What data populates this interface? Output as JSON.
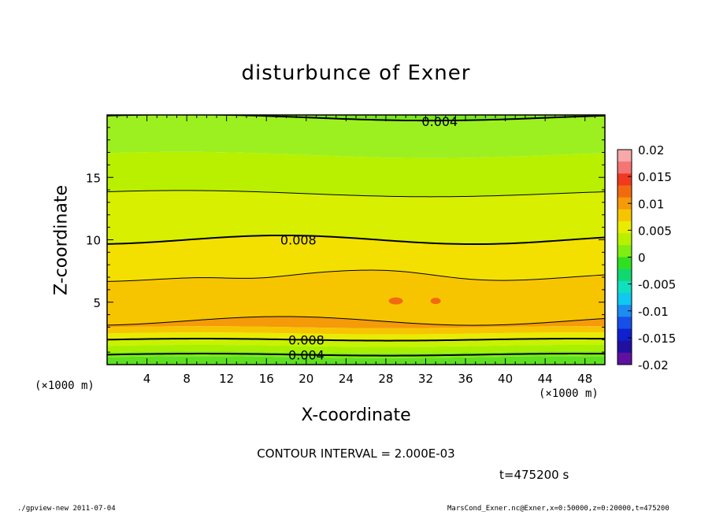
{
  "title": "disturbunce of Exner",
  "xlabel": "X-coordinate",
  "ylabel": "Z-coordinate",
  "x_unit_left": "(×1000 m)",
  "x_unit_right": "(×1000 m)",
  "contour_interval": "CONTOUR INTERVAL = 2.000E-03",
  "time": "t=475200 s",
  "footer_left": "./gpview-new   2011-07-04",
  "footer_right": "MarsCond_Exner.nc@Exner,x=0:50000,z=0:20000,t=475200",
  "chart_data": {
    "type": "heatmap",
    "title": "disturbunce of Exner",
    "xlabel": "X-coordinate",
    "ylabel": "Z-coordinate",
    "xlim": [
      0,
      50
    ],
    "ylim": [
      0,
      20
    ],
    "x_ticks": [
      4,
      8,
      12,
      16,
      20,
      24,
      28,
      32,
      36,
      40,
      44,
      48
    ],
    "y_ticks": [
      5,
      10,
      15
    ],
    "colorbar": {
      "ticks": [
        "0.02",
        "0.015",
        "0.01",
        "0.005",
        "0",
        "-0.005",
        "-0.01",
        "-0.015",
        "-0.02"
      ],
      "range": [
        -0.02,
        0.02
      ],
      "colors": [
        "#f7a8a8",
        "#f57575",
        "#f03a20",
        "#f26a10",
        "#f59a08",
        "#f7c500",
        "#e8ec00",
        "#b8f000",
        "#80ee10",
        "#30e020",
        "#10d870",
        "#10e0c0",
        "#10c8f0",
        "#1c8cf0",
        "#1650e8",
        "#1020d0",
        "#2010a0",
        "#6010a0"
      ]
    },
    "band_levels_z": [
      0.6,
      1.0,
      1.5,
      2.0,
      2.5,
      3.0,
      3.5,
      7.0,
      10.0,
      13.7,
      16.8,
      19.8
    ],
    "band_colors": [
      "#5ee020",
      "#80ee10",
      "#a8f000",
      "#c8f200",
      "#e8ec00",
      "#f7c500",
      "#f59a08",
      "#f7c500",
      "#f4e000",
      "#d8f000",
      "#b8f000",
      "#9cf020",
      "#7ae820"
    ],
    "contour_labels": [
      {
        "text": "0.004",
        "x": 31.6,
        "z": 19.5
      },
      {
        "text": "0.008",
        "x": 17.4,
        "z": 10.0
      },
      {
        "text": "0.008",
        "x": 18.2,
        "z": 2.0
      },
      {
        "text": "0.004",
        "x": 18.2,
        "z": 0.8
      }
    ],
    "contour_lines_z": [
      0.8,
      2.0,
      3.5,
      7.0,
      10.0,
      13.7,
      19.8
    ]
  }
}
